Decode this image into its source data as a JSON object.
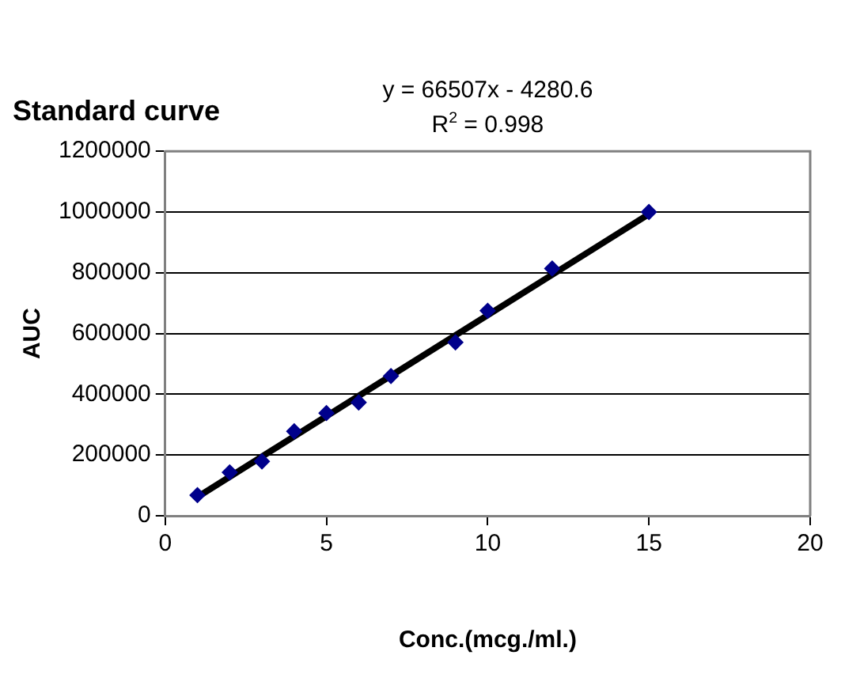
{
  "chart_data": {
    "type": "scatter",
    "title": "Standard curve",
    "xlabel": "Conc.(mcg./ml.)",
    "ylabel": "AUC",
    "annotations": [
      "y = 66507x - 4280.6",
      "R$^{2}$ = 0.998"
    ],
    "x": [
      1,
      2,
      3,
      4,
      5,
      6,
      7,
      9,
      10,
      12,
      15
    ],
    "series": [
      {
        "color": "#00008b",
        "marker": "diamond",
        "values": [
          68000,
          143000,
          179000,
          278000,
          338000,
          373000,
          460000,
          571000,
          675000,
          814000,
          1000000
        ]
      },
      {
        "type": "line",
        "color": "#000000",
        "marker": "none",
        "x": [
          1,
          15
        ],
        "values": [
          62000,
          993000
        ]
      }
    ],
    "xlim": [
      0,
      20
    ],
    "xticks": [
      0,
      5,
      10,
      15,
      20
    ],
    "ylim": [
      0,
      1200000
    ],
    "yticks": [
      0,
      200000,
      400000,
      600000,
      800000,
      1000000,
      1200000
    ],
    "grid": "y",
    "legend": false
  }
}
